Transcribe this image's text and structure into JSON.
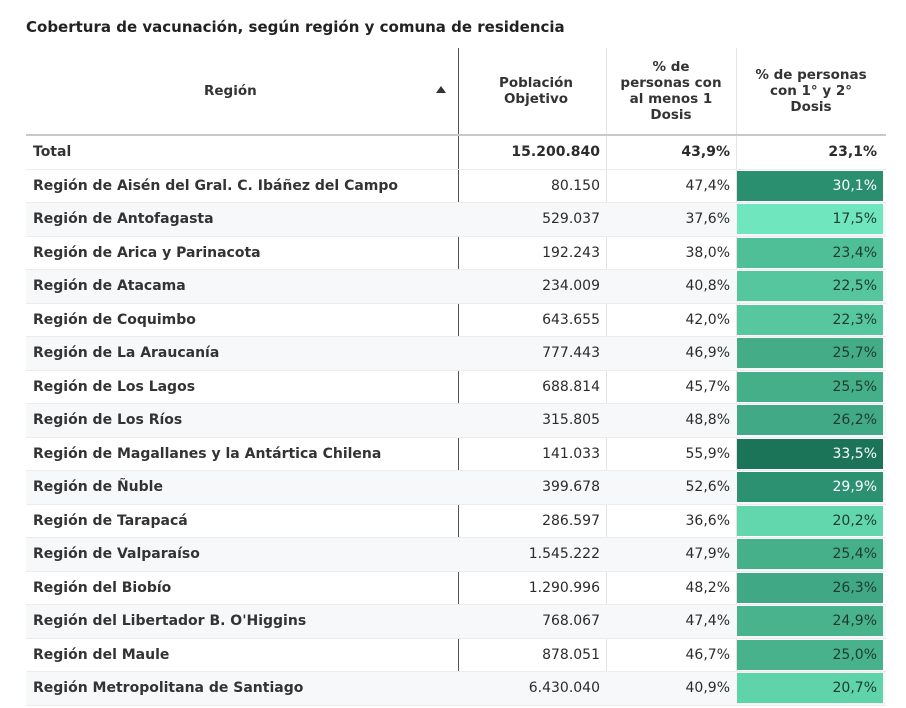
{
  "title": "Cobertura de vacunación, según región y comuna de residencia",
  "headers": {
    "region": "Región",
    "poblacion": "Población\nObjetivo",
    "dosis1": "% de\npersonas con\nal menos 1\nDosis",
    "dosis2": "% de personas\ncon 1° y 2°\nDosis"
  },
  "total": {
    "region": "Total",
    "poblacion": "15.200.840",
    "dosis1": "43,9%",
    "dosis2": "23,1%"
  },
  "rows": [
    {
      "region": "Región de Aisén del Gral. C. Ibáñez del Campo",
      "poblacion": "80.150",
      "dosis1": "47,4%",
      "dosis2": "30,1%",
      "color": "#2a8f6f"
    },
    {
      "region": "Región de Antofagasta",
      "poblacion": "529.037",
      "dosis1": "37,6%",
      "dosis2": "17,5%",
      "color": "#6fe6bd"
    },
    {
      "region": "Región de Arica y Parinacota",
      "poblacion": "192.243",
      "dosis1": "38,0%",
      "dosis2": "23,4%",
      "color": "#4fbf97"
    },
    {
      "region": "Región de Atacama",
      "poblacion": "234.009",
      "dosis1": "40,8%",
      "dosis2": "22,5%",
      "color": "#55c69d"
    },
    {
      "region": "Región de Coquimbo",
      "poblacion": "643.655",
      "dosis1": "42,0%",
      "dosis2": "22,3%",
      "color": "#56c79e"
    },
    {
      "region": "Región de La Araucanía",
      "poblacion": "777.443",
      "dosis1": "46,9%",
      "dosis2": "25,7%",
      "color": "#44ad88"
    },
    {
      "region": "Región de Los Lagos",
      "poblacion": "688.814",
      "dosis1": "45,7%",
      "dosis2": "25,5%",
      "color": "#45af89"
    },
    {
      "region": "Región de Los Ríos",
      "poblacion": "315.805",
      "dosis1": "48,8%",
      "dosis2": "26,2%",
      "color": "#41a985"
    },
    {
      "region": "Región de Magallanes y la Antártica Chilena",
      "poblacion": "141.033",
      "dosis1": "55,9%",
      "dosis2": "33,5%",
      "color": "#1b7458"
    },
    {
      "region": "Región de Ñuble",
      "poblacion": "399.678",
      "dosis1": "52,6%",
      "dosis2": "29,9%",
      "color": "#2b9170"
    },
    {
      "region": "Región de Tarapacá",
      "poblacion": "286.597",
      "dosis1": "36,6%",
      "dosis2": "20,2%",
      "color": "#62d6ac"
    },
    {
      "region": "Región de Valparaíso",
      "poblacion": "1.545.222",
      "dosis1": "47,9%",
      "dosis2": "25,4%",
      "color": "#46b08a"
    },
    {
      "region": "Región del Biobío",
      "poblacion": "1.290.996",
      "dosis1": "48,2%",
      "dosis2": "26,3%",
      "color": "#40a884"
    },
    {
      "region": "Región del Libertador B. O'Higgins",
      "poblacion": "768.067",
      "dosis1": "47,4%",
      "dosis2": "24,9%",
      "color": "#48b38c"
    },
    {
      "region": "Región del Maule",
      "poblacion": "878.051",
      "dosis1": "46,7%",
      "dosis2": "25,0%",
      "color": "#47b28b"
    },
    {
      "region": "Región Metropolitana de Santiago",
      "poblacion": "6.430.040",
      "dosis1": "40,9%",
      "dosis2": "20,7%",
      "color": "#5fd3a9"
    }
  ]
}
